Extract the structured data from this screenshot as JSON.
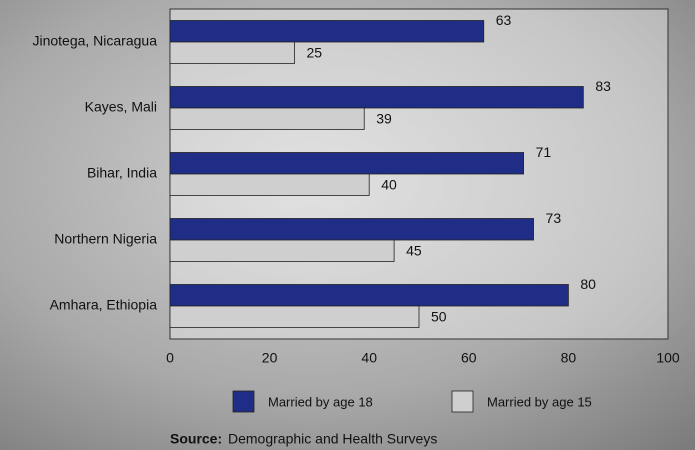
{
  "chart_data": {
    "type": "hbar",
    "categories": [
      "Jinotega, Nicaragua",
      "Kayes, Mali",
      "Bihar, India",
      "Northern Nigeria",
      "Amhara, Ethiopia"
    ],
    "series": [
      {
        "name": "Married by age 18",
        "color": "#1f2d86",
        "values": [
          63,
          83,
          71,
          73,
          80
        ]
      },
      {
        "name": "Married by age 15",
        "color": "#cfcfcf",
        "values": [
          25,
          39,
          40,
          45,
          50
        ]
      }
    ],
    "xlim": [
      0,
      100
    ],
    "xticks": [
      0,
      20,
      40,
      60,
      80,
      100
    ],
    "grid": false,
    "source_label": "Source:",
    "source": "Demographic and Health Surveys"
  }
}
